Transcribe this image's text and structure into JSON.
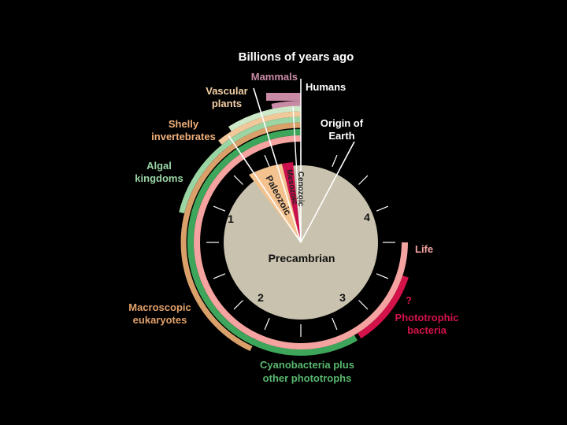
{
  "title": "Billions of years ago",
  "eras": [
    {
      "label": "Precambrian",
      "color": "#c8c2ae"
    },
    {
      "label": "Paleozoic",
      "color": "#f3c28f"
    },
    {
      "label": "Mesozoic",
      "color": "#c90f4c"
    },
    {
      "label": "Cenozoic",
      "color": "#c8c2ae"
    }
  ],
  "ticks": [
    "1",
    "2",
    "3",
    "4"
  ],
  "labels": {
    "humans": "Humans",
    "origin_of_earth": [
      "Origin of",
      "Earth"
    ],
    "mammals": "Mammals",
    "vascular_plants": [
      "Vascular",
      "plants"
    ],
    "shelly_invertebrates": [
      "Shelly",
      "invertebrates"
    ],
    "algal_kingdoms": [
      "Algal",
      "kingdoms"
    ],
    "macroscopic_eukaryotes": [
      "Macroscopic",
      "eukaryotes"
    ],
    "cyanobacteria": [
      "Cyanobacteria plus",
      "other phototrophs"
    ],
    "life": "Life",
    "phototrophic_bacteria": [
      "?",
      "Phototrophic",
      "bacteria"
    ]
  },
  "colors": {
    "mammals": "#c98aa6",
    "vascular": "#cde9c8",
    "shelly": "#f0c89a",
    "algal": "#9bd5a4",
    "macro": "#d9a06a",
    "cyano": "#3da65a",
    "life": "#f5a3a0",
    "phototrophic": "#d3124a",
    "dial": "#c8c2ae"
  }
}
